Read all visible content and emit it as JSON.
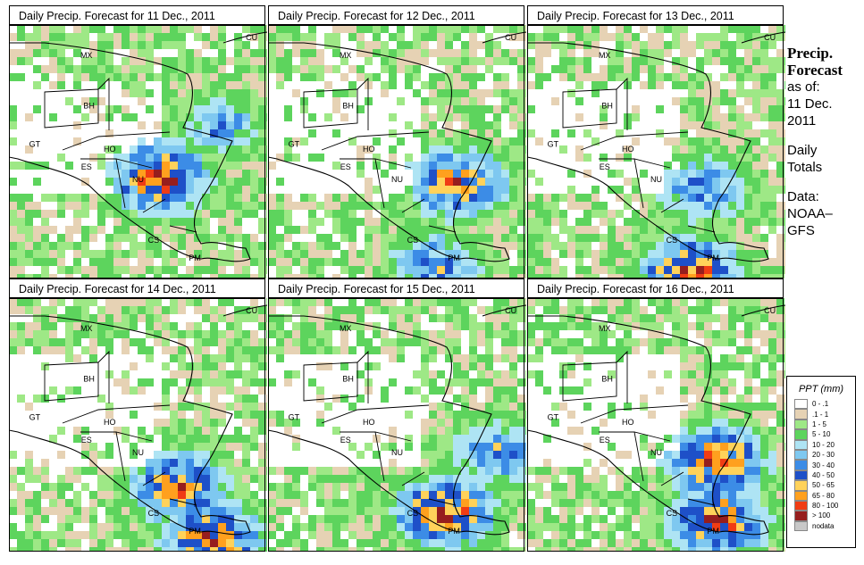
{
  "panels": [
    {
      "title": "Daily Precip. Forecast for  11 Dec., 2011",
      "storm": [
        [
          0.55,
          0.58,
          1.0
        ],
        [
          0.78,
          0.38,
          0.6
        ]
      ]
    },
    {
      "title": "Daily Precip. Forecast for  12 Dec., 2011",
      "storm": [
        [
          0.7,
          0.6,
          0.9
        ],
        [
          0.62,
          0.92,
          0.7
        ]
      ]
    },
    {
      "title": "Daily Precip. Forecast for  13 Dec., 2011",
      "storm": [
        [
          0.6,
          0.95,
          1.0
        ],
        [
          0.65,
          0.62,
          0.7
        ]
      ]
    },
    {
      "title": "Daily Precip. Forecast for  14 Dec., 2011",
      "storm": [
        [
          0.62,
          0.72,
          0.9
        ],
        [
          0.75,
          0.92,
          1.0
        ]
      ]
    },
    {
      "title": "Daily Precip. Forecast for  15 Dec., 2011",
      "storm": [
        [
          0.65,
          0.82,
          1.0
        ],
        [
          0.85,
          0.6,
          0.7
        ]
      ]
    },
    {
      "title": "Daily Precip. Forecast for  16 Dec., 2011",
      "storm": [
        [
          0.7,
          0.62,
          1.0
        ],
        [
          0.7,
          0.85,
          1.0
        ]
      ]
    }
  ],
  "country_labels": [
    "MX",
    "BH",
    "GT",
    "HO",
    "ES",
    "NU",
    "CS",
    "PM",
    "CU"
  ],
  "sidebar": {
    "title_line1": "Precip.",
    "title_line2": "Forecast",
    "asof_line1": "as of:",
    "asof_line2": "11 Dec.",
    "asof_line3": "2011",
    "daily_line1": "Daily",
    "daily_line2": "Totals",
    "data_line1": "Data:",
    "data_line2": "NOAA–",
    "data_line3": "GFS"
  },
  "legend": {
    "title": "PPT (mm)",
    "items": [
      {
        "label": "0 - .1",
        "color": "#ffffff"
      },
      {
        "label": ".1 - 1",
        "color": "#e6d2b4"
      },
      {
        "label": "1 - 5",
        "color": "#9ee886"
      },
      {
        "label": "5 - 10",
        "color": "#5dd45d"
      },
      {
        "label": "10 - 20",
        "color": "#aee4f4"
      },
      {
        "label": "20 - 30",
        "color": "#7ec8f0"
      },
      {
        "label": "30 - 40",
        "color": "#3c8ce6"
      },
      {
        "label": "40 - 50",
        "color": "#1e50c8"
      },
      {
        "label": "50 - 65",
        "color": "#ffd25a"
      },
      {
        "label": "65 - 80",
        "color": "#ffa01e"
      },
      {
        "label": "80 - 100",
        "color": "#f03c14"
      },
      {
        "label": "> 100",
        "color": "#961e1e"
      },
      {
        "label": "nodata",
        "color": "#c8c8c8"
      }
    ]
  }
}
